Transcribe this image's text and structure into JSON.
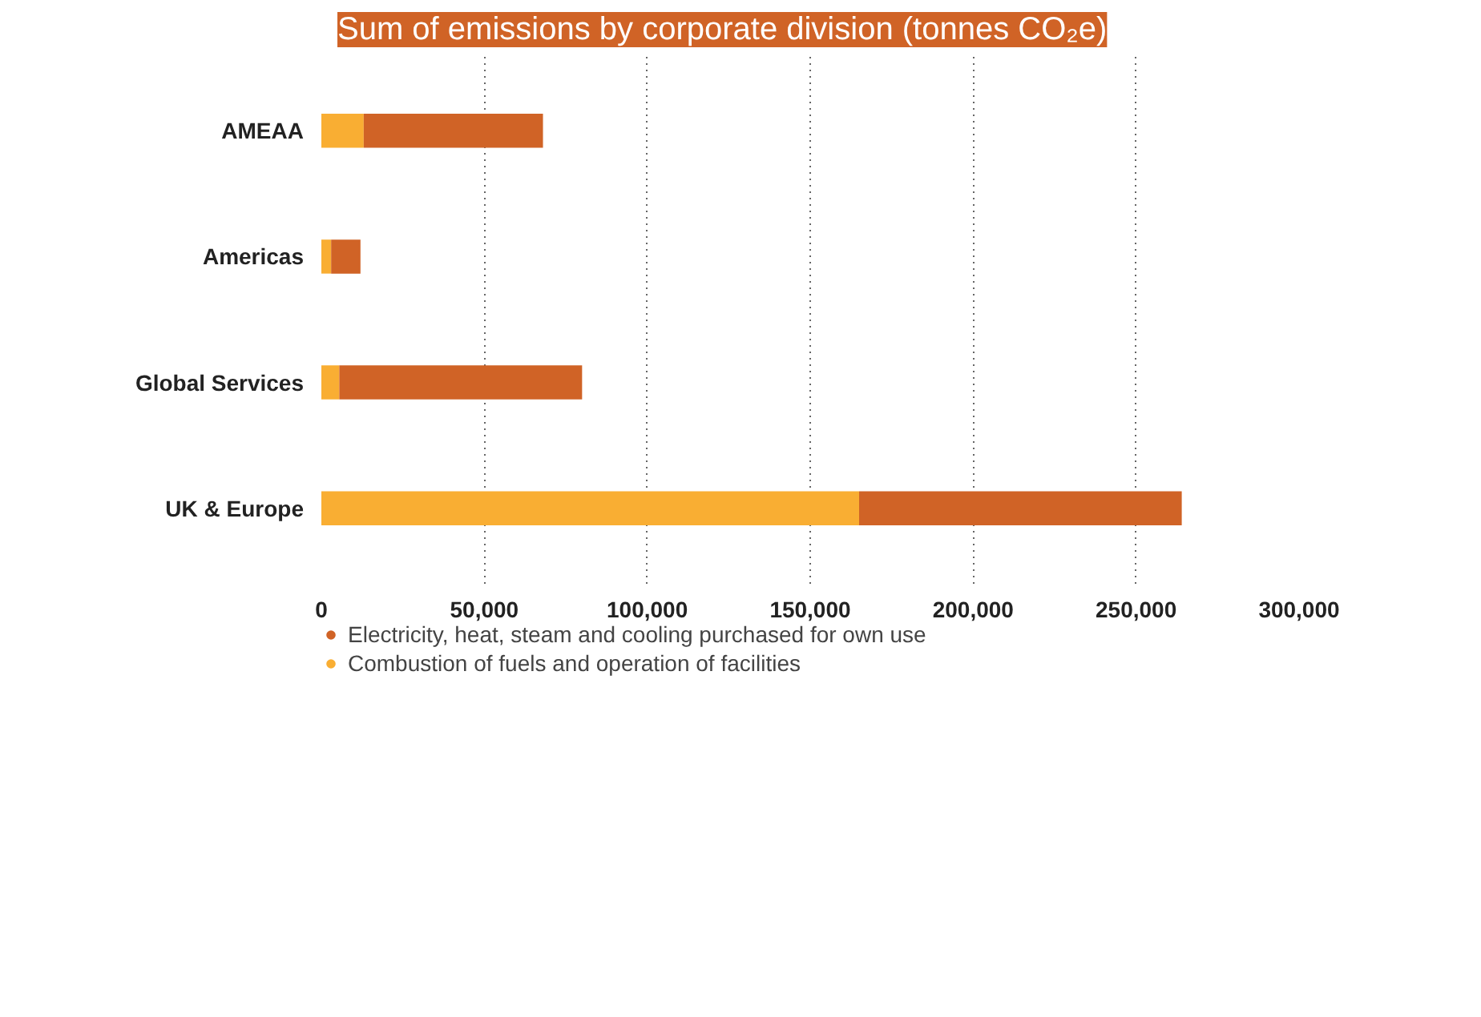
{
  "chart_data": {
    "type": "bar",
    "orientation": "horizontal",
    "stacked": true,
    "title": "Sum of emissions by corporate division (tonnes CO₂e)",
    "categories": [
      "AMEAA",
      "Americas",
      "Global Services",
      "UK & Europe"
    ],
    "series": [
      {
        "name": "Combustion of fuels and operation of facilities",
        "color": "#f9ae33",
        "values": [
          13000,
          3000,
          5500,
          165000
        ]
      },
      {
        "name": "Electricity, heat, steam and cooling purchased for own use",
        "color": "#d06326",
        "values": [
          55000,
          9000,
          74500,
          99000
        ]
      }
    ],
    "xlim": [
      0,
      300000
    ],
    "xticks": [
      {
        "value": 0,
        "label": "0"
      },
      {
        "value": 50000,
        "label": "50,000"
      },
      {
        "value": 100000,
        "label": "100,000"
      },
      {
        "value": 150000,
        "label": "150,000"
      },
      {
        "value": 200000,
        "label": "200,000"
      },
      {
        "value": 250000,
        "label": "250,000"
      },
      {
        "value": 300000,
        "label": "300,000"
      }
    ],
    "grid": "x",
    "legend": "bottom left"
  }
}
